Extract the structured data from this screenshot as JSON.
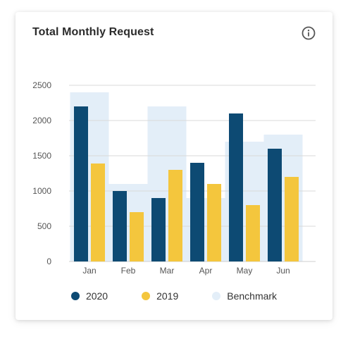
{
  "card": {
    "title": "Total Monthly Request",
    "info_icon": "info-circle-icon"
  },
  "colors": {
    "series_2020": "#0d4a73",
    "series_2019": "#f4c63d",
    "benchmark": "#e3eef8",
    "grid": "#d9d9d9",
    "axis": "#cfcfcf"
  },
  "chart_data": {
    "type": "bar",
    "title": "Total Monthly Request",
    "categories": [
      "Jan",
      "Feb",
      "Mar",
      "Apr",
      "May",
      "Jun"
    ],
    "series": [
      {
        "name": "2020",
        "values": [
          2200,
          1000,
          900,
          1400,
          2100,
          1600
        ]
      },
      {
        "name": "2019",
        "values": [
          1390,
          700,
          1300,
          1100,
          800,
          1200
        ]
      },
      {
        "name": "Benchmark",
        "values": [
          2400,
          1100,
          2200,
          900,
          1700,
          1800
        ]
      }
    ],
    "ylim": [
      0,
      2500
    ],
    "yticks": [
      0,
      500,
      1000,
      1500,
      2000,
      2500
    ],
    "grid": true,
    "legend_position": "bottom"
  }
}
